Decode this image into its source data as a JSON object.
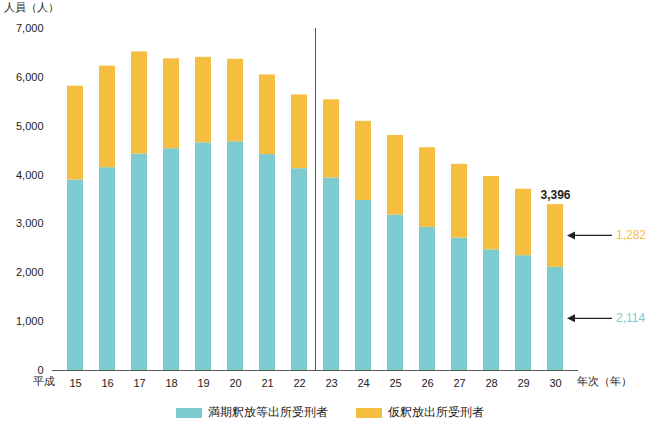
{
  "chart_data": {
    "type": "bar",
    "stacked": true,
    "grid": false,
    "y_label": "人員（人）",
    "x_label": "年次（年）",
    "x_era": "平成",
    "categories": [
      "15",
      "16",
      "17",
      "18",
      "19",
      "20",
      "21",
      "22",
      "23",
      "24",
      "25",
      "26",
      "27",
      "28",
      "29",
      "30"
    ],
    "series": [
      {
        "name": "満期釈放等出所受刑者",
        "color": "#7ecbcf",
        "values": [
          3900,
          4150,
          4430,
          4540,
          4660,
          4680,
          4420,
          4130,
          3940,
          3480,
          3180,
          2930,
          2710,
          2470,
          2350,
          2114
        ],
        "value_labels": [
          null,
          null,
          null,
          null,
          null,
          null,
          null,
          null,
          null,
          null,
          null,
          null,
          null,
          null,
          null,
          "2,114"
        ]
      },
      {
        "name": "仮釈放出所受刑者",
        "color": "#f5be41",
        "values": [
          1920,
          2080,
          2090,
          1840,
          1750,
          1690,
          1630,
          1510,
          1600,
          1620,
          1630,
          1630,
          1510,
          1500,
          1360,
          1282
        ],
        "value_labels": [
          null,
          null,
          null,
          null,
          null,
          null,
          null,
          null,
          null,
          null,
          null,
          null,
          null,
          null,
          null,
          "1,282"
        ]
      }
    ],
    "annotations": [
      {
        "text": "3,396",
        "category": "30",
        "value": 3396
      }
    ],
    "ylim": [
      0,
      7000
    ],
    "yticks": [
      0,
      {
        "value": 1000,
        "label": "1,000"
      },
      {
        "value": 2000,
        "label": "2,000"
      },
      {
        "value": 3000,
        "label": "3,000"
      },
      {
        "value": 4000,
        "label": "4,000"
      },
      {
        "value": 5000,
        "label": "5,000"
      },
      {
        "value": 6000,
        "label": "6,000"
      },
      {
        "value": 7000,
        "label": "7,000"
      }
    ],
    "legend": "bottom"
  }
}
